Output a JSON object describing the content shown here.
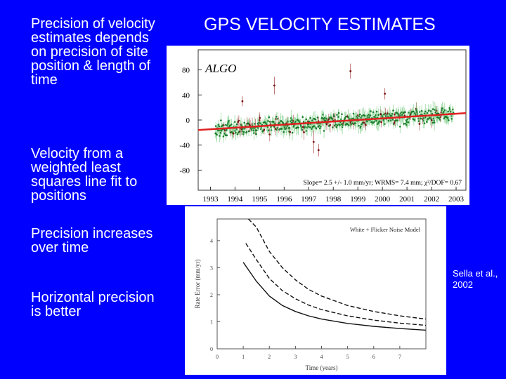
{
  "slide": {
    "title": "GPS VELOCITY ESTIMATES",
    "bullets": [
      "Precision of velocity estimates depends on precision of site position & length of time",
      "Velocity from a weighted least squares line fit to positions",
      "Precision increases over time",
      "Horizontal precision is better"
    ],
    "citation": "Sella et al., 2002"
  },
  "colors": {
    "background": "#0000ff",
    "text": "#ffffff",
    "fit_line": "#e02020",
    "points": "#1a7a2a",
    "error_bars": "#b05050"
  },
  "chart_data": [
    {
      "type": "scatter",
      "title": "",
      "annotation": "ALGO",
      "footnote": "Slope= 2.5 +/- 1.0 mm/yr; WRMS= 7.4 mm; χ²/DOF= 0.67",
      "x_ticks": [
        "1993",
        "1994",
        "1995",
        "1996",
        "1997",
        "1998",
        "1999",
        "2000",
        "2001",
        "2002",
        "2003"
      ],
      "y_ticks": [
        80,
        40,
        0,
        -40,
        -80
      ],
      "xlim": [
        1992.5,
        2003.4
      ],
      "ylim": [
        -112,
        112
      ],
      "fit_line": {
        "x": [
          1992.5,
          2003.4
        ],
        "y": [
          -16,
          11
        ]
      },
      "data_range": [
        1993.2,
        2002.9
      ],
      "slope_mm_per_yr": 2.5
    },
    {
      "type": "line",
      "title": "",
      "legend_label": "White + Flicker Noise Model",
      "xlabel": "Time (years)",
      "ylabel": "Rate Error (mm/yr)",
      "x_ticks": [
        "0",
        "1",
        "2",
        "3",
        "4",
        "5",
        "6",
        "7"
      ],
      "y_ticks": [
        "0",
        "1",
        "2",
        "3",
        "4"
      ],
      "xlim": [
        0,
        8
      ],
      "ylim": [
        0,
        4.8
      ],
      "series": [
        {
          "x": [
            1.2,
            1.5,
            2,
            2.5,
            3,
            3.5,
            4,
            5,
            6,
            7,
            8
          ],
          "y": [
            4.8,
            4.5,
            3.6,
            3.0,
            2.55,
            2.2,
            1.95,
            1.6,
            1.38,
            1.22,
            1.1
          ]
        },
        {
          "x": [
            1.1,
            1.5,
            2,
            2.5,
            3,
            3.5,
            4,
            5,
            6,
            7,
            8
          ],
          "y": [
            3.9,
            3.3,
            2.6,
            2.15,
            1.85,
            1.62,
            1.45,
            1.22,
            1.06,
            0.95,
            0.87
          ]
        },
        {
          "x": [
            1,
            1.5,
            2,
            2.5,
            3,
            3.5,
            4,
            5,
            6,
            7,
            8
          ],
          "y": [
            3.2,
            2.5,
            1.95,
            1.6,
            1.38,
            1.22,
            1.1,
            0.94,
            0.83,
            0.75,
            0.69
          ]
        }
      ]
    }
  ]
}
